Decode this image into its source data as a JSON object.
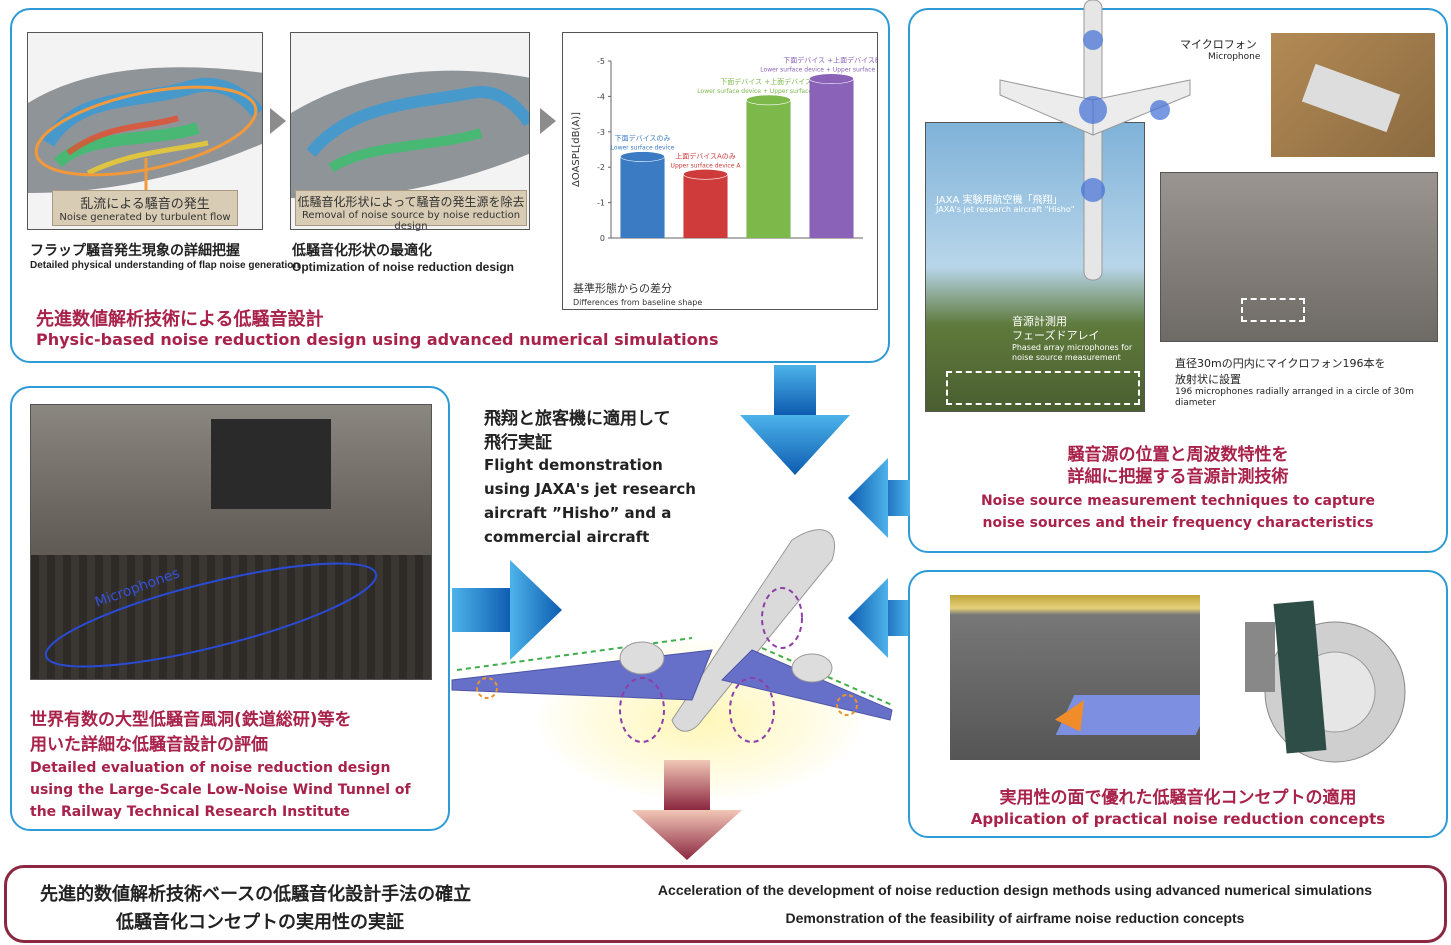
{
  "panel_top": {
    "img1_caption_jp": "乱流による騒音の発生",
    "img1_caption_en": "Noise generated by turbulent flow",
    "img1_label_jp": "フラップ騒音発生現象の詳細把握",
    "img1_label_en": "Detailed physical understanding of flap noise generation",
    "img2_caption_jp": "低騒音化形状によって騒音の発生源を除去",
    "img2_caption_en": "Removal of noise source by noise reduction design",
    "img2_label_jp": "低騒音化形状の最適化",
    "img2_label_en": "Optimization of noise reduction design",
    "title_jp": "先進数値解析技術による低騒音設計",
    "title_en": "Physic-based noise reduction design using advanced numerical simulations"
  },
  "chart_data": {
    "type": "bar",
    "ylabel": "ΔOASPL[dB(A)]",
    "ylim": [
      -5,
      0
    ],
    "yticks": [
      "0",
      "-1",
      "-2",
      "-3",
      "-4",
      "-5"
    ],
    "xlabel_jp": "基準形態からの差分",
    "xlabel_en": "Differences from baseline shape",
    "series": [
      {
        "label_jp": "下面デバイスのみ",
        "label_en": "Lower surface device",
        "value": -2.3,
        "color": "#3a7bc4"
      },
      {
        "label_jp": "上面デバイスAのみ",
        "label_en": "Upper surface device A",
        "value": -1.8,
        "color": "#cf3b3b"
      },
      {
        "label_jp": "下面デバイス +上面デバイスA",
        "label_en": "Lower surface device + Upper surface device A",
        "value": -3.9,
        "color": "#7cb84a"
      },
      {
        "label_jp": "下面デバイス +上面デバイスB",
        "label_en": "Lower surface device + Upper surface device B",
        "value": -4.5,
        "color": "#8a63b8"
      }
    ]
  },
  "panel_right": {
    "mic_jp": "マイクロフォン",
    "mic_en": "Microphone",
    "aircraft_jp": "JAXA 実験用航空機「飛翔」",
    "aircraft_en": "JAXA's jet research aircraft \"Hisho\"",
    "array_jp1": "音源計測用",
    "array_jp2": "フェーズドアレイ",
    "array_en": "Phased array microphones for noise source measurement",
    "arrangement_jp1": "直径30mの円内にマイクロフォン196本を",
    "arrangement_jp2": "放射状に設置",
    "arrangement_en": "196 microphones radially arranged in a circle of 30m diameter",
    "title_jp1": "騒音源の位置と周波数特性を",
    "title_jp2": "詳細に把握する音源計測技術",
    "title_en1": "Noise source measurement techniques to capture",
    "title_en2": "noise sources and their frequency characteristics"
  },
  "panel_left": {
    "microphones_label": "Microphones",
    "title_jp1": "世界有数の大型低騒音風洞(鉄道総研)等を",
    "title_jp2": "用いた詳細な低騒音設計の評価",
    "title_en1": "Detailed evaluation of noise reduction design",
    "title_en2": "using the Large-Scale Low-Noise Wind Tunnel of",
    "title_en3": "the Railway Technical Research Institute"
  },
  "center": {
    "flight_jp1": "飛翔と旅客機に適用して",
    "flight_jp2": "飛行実証",
    "flight_en1": "Flight demonstration",
    "flight_en2": "using JAXA's jet research",
    "flight_en3": "aircraft ”Hisho” and a",
    "flight_en4": "commercial aircraft"
  },
  "panel_br": {
    "title_jp": "実用性の面で優れた低騒音化コンセプトの適用",
    "title_en": "Application of practical noise reduction concepts"
  },
  "bottom": {
    "jp1": "先進的数値解析技術ベースの低騒音化設計手法の確立",
    "jp2": "低騒音化コンセプトの実用性の実証",
    "en1": "Acceleration of the development of noise reduction design methods using advanced numerical simulations",
    "en2": "Demonstration of the feasibility of airframe noise reduction concepts"
  }
}
